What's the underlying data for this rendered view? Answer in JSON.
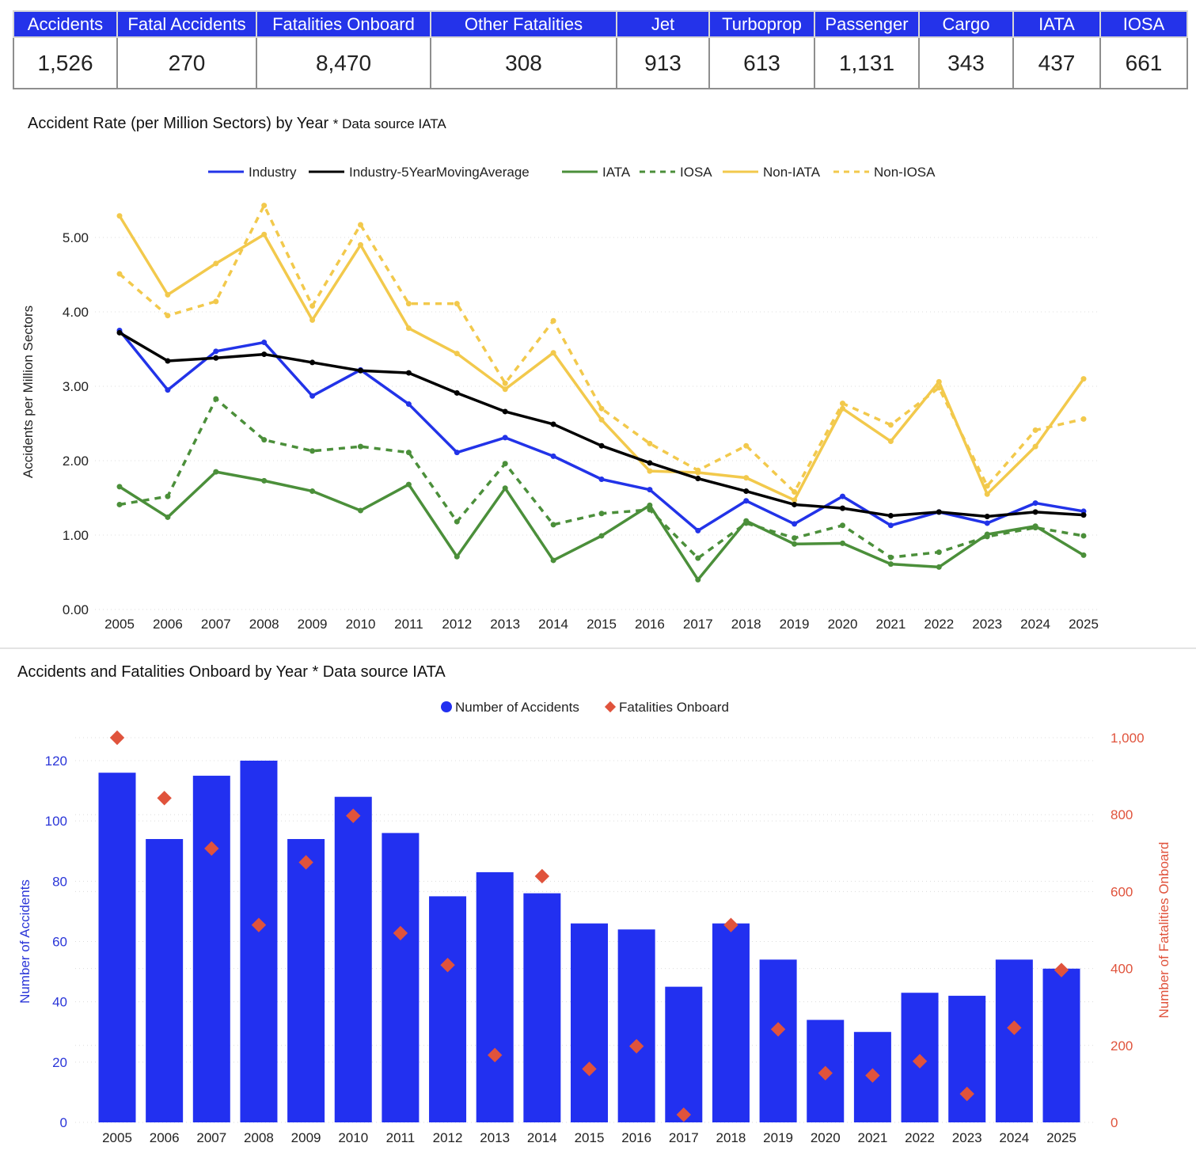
{
  "kpis": [
    {
      "label": "Accidents",
      "value": "1,526"
    },
    {
      "label": "Fatal Accidents",
      "value": "270"
    },
    {
      "label": "Fatalities Onboard",
      "value": "8,470"
    },
    {
      "label": "Other Fatalities",
      "value": "308"
    },
    {
      "label": "Jet",
      "value": "913"
    },
    {
      "label": "Turboprop",
      "value": "613"
    },
    {
      "label": "Passenger",
      "value": "1,131"
    },
    {
      "label": "Cargo",
      "value": "343"
    },
    {
      "label": "IATA",
      "value": "437"
    },
    {
      "label": "IOSA",
      "value": "661"
    }
  ],
  "chart_data": [
    {
      "type": "line",
      "title": "Accident Rate (per Million Sectors) by Year",
      "subtitle": "* Data source IATA",
      "xlabel": "",
      "ylabel": "Accidents per Million Sectors",
      "ylim": [
        0,
        5.0
      ],
      "yticks": [
        "0.00",
        "1.00",
        "2.00",
        "3.00",
        "4.00",
        "5.00"
      ],
      "grid": "horizontal dotted",
      "legend_position": "top-center",
      "x": [
        "2005",
        "2006",
        "2007",
        "2008",
        "2009",
        "2010",
        "2011",
        "2012",
        "2013",
        "2014",
        "2015",
        "2016",
        "2017",
        "2018",
        "2019",
        "2020",
        "2021",
        "2022",
        "2023",
        "2024",
        "2025"
      ],
      "series": [
        {
          "name": "Industry",
          "color": "#2233e8",
          "dash": false,
          "values": [
            3.75,
            2.95,
            3.47,
            3.59,
            2.87,
            3.22,
            2.76,
            2.11,
            2.31,
            2.06,
            1.75,
            1.61,
            1.06,
            1.46,
            1.15,
            1.52,
            1.13,
            1.31,
            1.16,
            1.43,
            1.32
          ]
        },
        {
          "name": "Industry-5YearMovingAverage",
          "color": "#000000",
          "dash": false,
          "values": [
            3.72,
            3.34,
            3.38,
            3.43,
            3.32,
            3.21,
            3.18,
            2.91,
            2.66,
            2.49,
            2.2,
            1.97,
            1.76,
            1.59,
            1.41,
            1.36,
            1.26,
            1.31,
            1.25,
            1.31,
            1.27
          ]
        },
        {
          "name": "IATA",
          "color": "#4b8f3a",
          "dash": false,
          "values": [
            1.65,
            1.24,
            1.85,
            1.73,
            1.59,
            1.33,
            1.68,
            0.71,
            1.63,
            0.66,
            0.99,
            1.4,
            0.4,
            1.19,
            0.88,
            0.89,
            0.61,
            0.57,
            1.01,
            1.12,
            0.73
          ]
        },
        {
          "name": "IOSA",
          "color": "#4b8f3a",
          "dash": true,
          "values": [
            1.41,
            1.52,
            2.83,
            2.28,
            2.13,
            2.19,
            2.11,
            1.18,
            1.96,
            1.14,
            1.29,
            1.34,
            0.69,
            1.16,
            0.96,
            1.13,
            0.7,
            0.77,
            0.98,
            1.1,
            0.99
          ]
        },
        {
          "name": "Non-IATA",
          "color": "#f2c94c",
          "dash": false,
          "values": [
            5.29,
            4.23,
            4.65,
            5.04,
            3.89,
            4.9,
            3.78,
            3.44,
            2.96,
            3.45,
            2.55,
            1.86,
            1.84,
            1.77,
            1.47,
            2.7,
            2.26,
            3.06,
            1.55,
            2.19,
            3.1
          ]
        },
        {
          "name": "Non-IOSA",
          "color": "#f2c94c",
          "dash": true,
          "values": [
            4.51,
            3.95,
            4.14,
            5.43,
            4.08,
            5.17,
            4.11,
            4.11,
            3.04,
            3.88,
            2.7,
            2.23,
            1.87,
            2.2,
            1.58,
            2.77,
            2.48,
            2.98,
            1.66,
            2.41,
            2.56
          ]
        }
      ]
    },
    {
      "type": "bar",
      "title": "Accidents and Fatalities Onboard by Year",
      "subtitle": "* Data source IATA",
      "xlabel": "",
      "ylabel": "Number of Accidents",
      "y2label": "Number of Fatalities Onboard",
      "ylim": [
        0,
        120
      ],
      "y2lim": [
        0,
        1000
      ],
      "yticks": [
        "0",
        "20",
        "40",
        "60",
        "80",
        "100",
        "120"
      ],
      "y2ticks": [
        "0",
        "200",
        "400",
        "600",
        "800",
        "1,000"
      ],
      "grid": "horizontal dotted",
      "legend_position": "top-center",
      "categories": [
        "2005",
        "2006",
        "2007",
        "2008",
        "2009",
        "2010",
        "2011",
        "2012",
        "2013",
        "2014",
        "2015",
        "2016",
        "2017",
        "2018",
        "2019",
        "2020",
        "2021",
        "2022",
        "2023",
        "2024",
        "2025"
      ],
      "series": [
        {
          "name": "Number of Accidents",
          "type": "bar",
          "axis": "left",
          "color": "#2230f0",
          "values": [
            116,
            94,
            115,
            120,
            94,
            108,
            96,
            75,
            83,
            76,
            66,
            64,
            45,
            66,
            54,
            34,
            30,
            43,
            42,
            54,
            51
          ]
        },
        {
          "name": "Fatalities Onboard",
          "type": "scatter-diamond",
          "axis": "right",
          "color": "#e0533c",
          "values": [
            1000,
            843,
            712,
            513,
            676,
            797,
            492,
            409,
            175,
            640,
            139,
            198,
            20,
            513,
            242,
            128,
            122,
            159,
            74,
            246,
            396
          ]
        }
      ]
    }
  ]
}
